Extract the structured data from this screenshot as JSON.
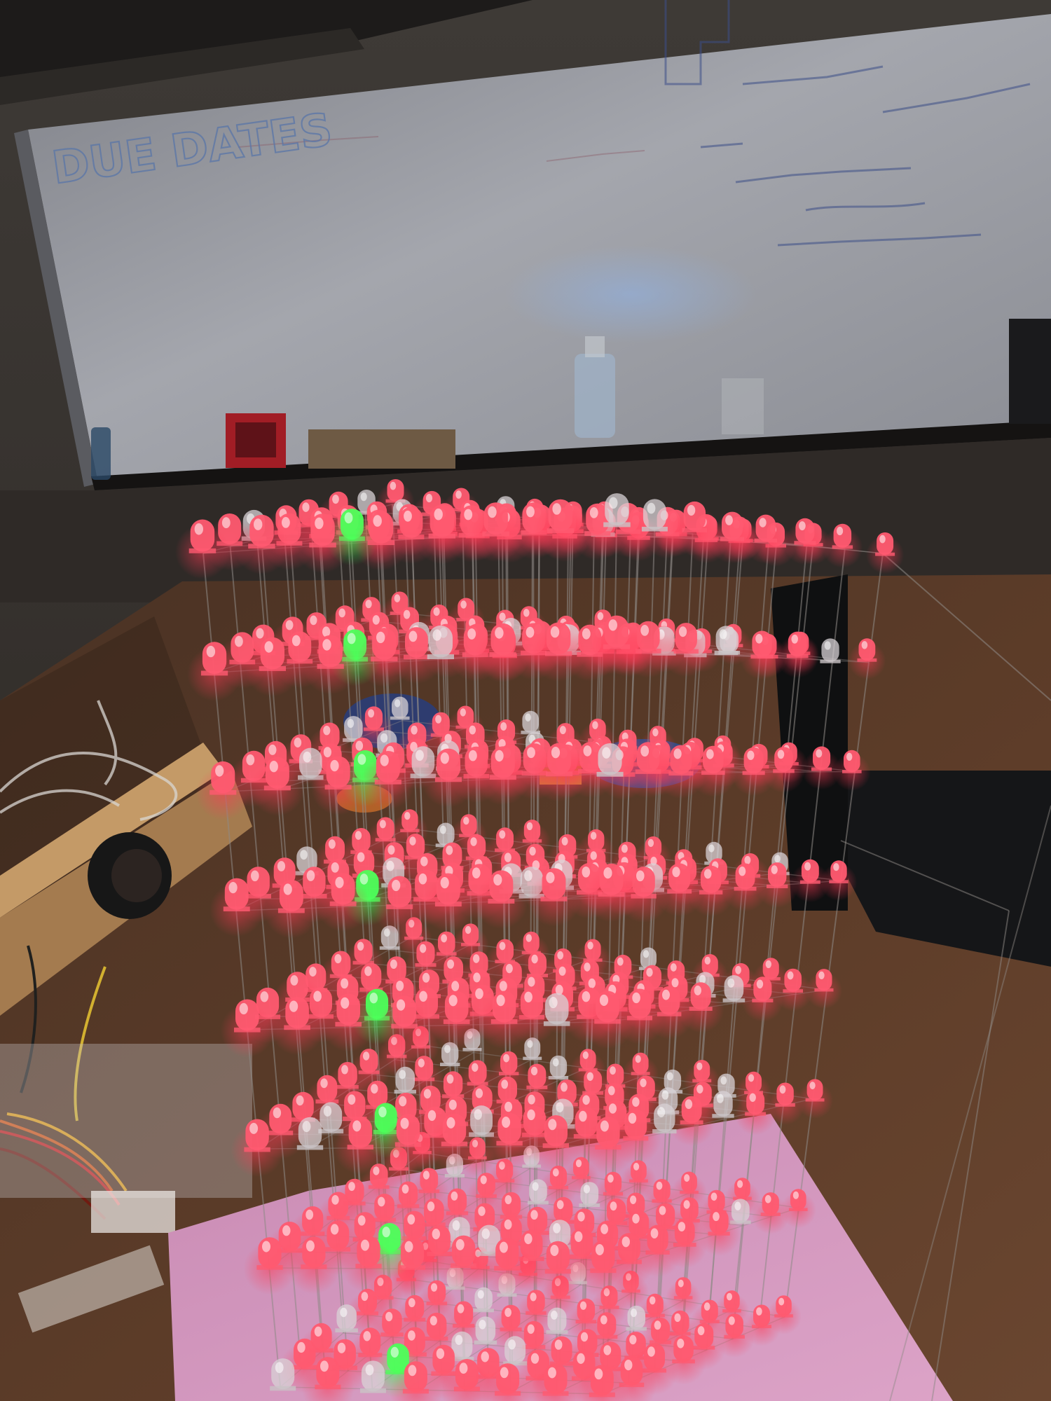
{
  "scene": {
    "whiteboard_heading": "DUE DATES"
  },
  "colors": {
    "red_led": "#ff5a70",
    "green_led": "#4dff5a",
    "unlit_led": "#d8d2d6",
    "wire": "#8f8a86",
    "pink_base": "#d79ac0",
    "whiteboard": "#9d9fa6",
    "wooden_table": "#5a3a28"
  }
}
